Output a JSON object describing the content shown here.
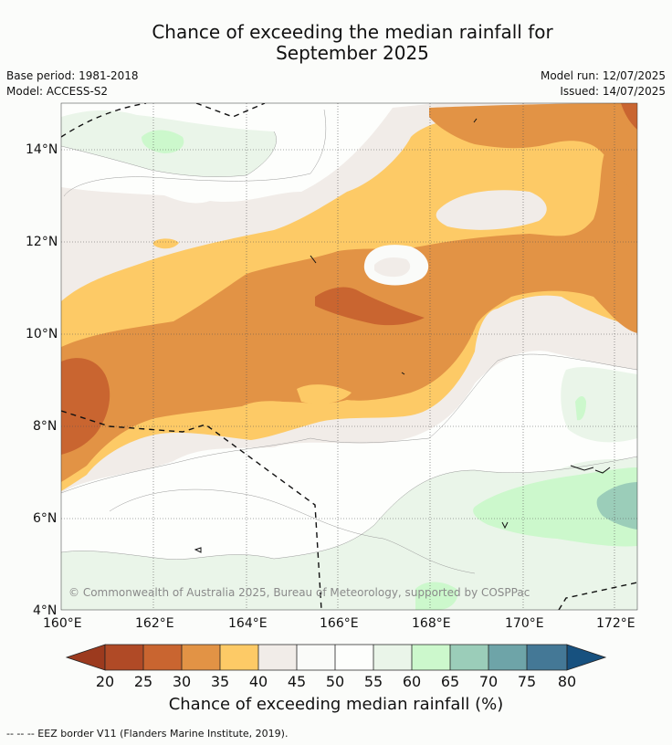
{
  "title": {
    "line1": "Chance of exceeding the median rainfall for",
    "line2": "September 2025"
  },
  "meta": {
    "base_period": "Base period: 1981-2018",
    "model": "Model: ACCESS-S2",
    "model_run": "Model run: 12/07/2025",
    "issued": "Issued: 14/07/2025"
  },
  "map": {
    "y_ticks": [
      "14°N",
      "12°N",
      "10°N",
      "8°N",
      "6°N",
      "4°N"
    ],
    "x_ticks": [
      "160°E",
      "162°E",
      "164°E",
      "166°E",
      "168°E",
      "170°E",
      "172°E"
    ],
    "copyright": "© Commonwealth of Australia 2025, Bureau of Meteorology, supported by COSPPac",
    "colors": {
      "c20": "#9c3a1e",
      "c25": "#b04a26",
      "c30": "#c96530",
      "c35": "#e29345",
      "c40": "#fdca66",
      "c45": "#f1ece8",
      "c50": "#fafbf9",
      "c55": "#fdfefc",
      "c60": "#eaf5e9",
      "c65": "#ccf8cc",
      "c70": "#9bcdb9",
      "c75": "#6ea4a8",
      "c80": "#447896",
      "c80plus": "#17517f"
    }
  },
  "colorbar": {
    "labels": [
      "20",
      "25",
      "30",
      "35",
      "40",
      "45",
      "50",
      "55",
      "60",
      "65",
      "70",
      "75",
      "80"
    ],
    "title": "Chance of exceeding median rainfall (%)"
  },
  "footnote": "--  --  -- EEZ border V11 (Flanders Marine Institute, 2019)."
}
